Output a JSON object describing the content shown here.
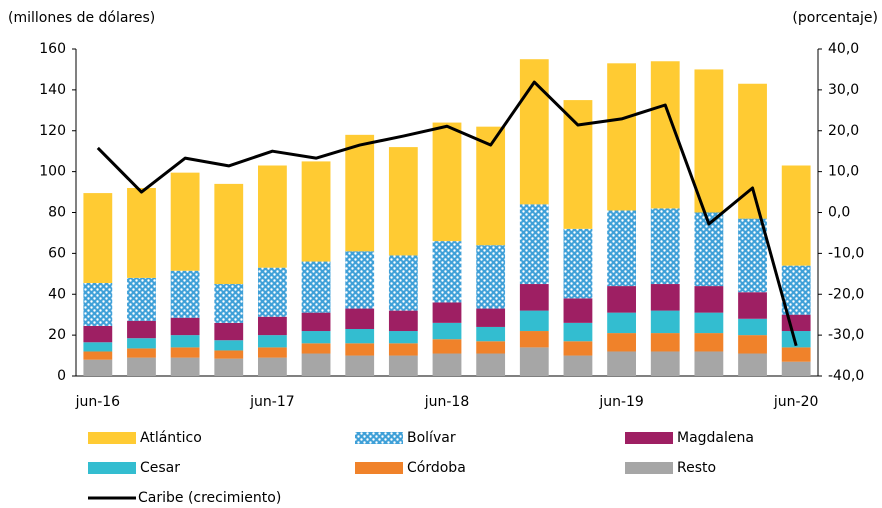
{
  "chart_data": {
    "type": "bar",
    "y_label": "(millones de dólares)",
    "y2_label": "(porcentaje)",
    "categories": [
      "jun-16",
      null,
      null,
      null,
      "jun-17",
      null,
      null,
      null,
      "jun-18",
      null,
      null,
      null,
      "jun-19",
      null,
      null,
      null,
      "jun-20"
    ],
    "ylim": [
      0,
      160
    ],
    "yticks": [
      0,
      20,
      40,
      60,
      80,
      100,
      120,
      140,
      160
    ],
    "y2lim": [
      -40,
      40
    ],
    "y2ticks": [
      {
        "value": -40,
        "label": "-40,0"
      },
      {
        "value": -30,
        "label": "-30,0"
      },
      {
        "value": -20,
        "label": "-20,0"
      },
      {
        "value": -10,
        "label": "-10,0"
      },
      {
        "value": 0,
        "label": "0,0"
      },
      {
        "value": 10,
        "label": "10,0"
      },
      {
        "value": 20,
        "label": "20,0"
      },
      {
        "value": 30,
        "label": "30,0"
      },
      {
        "value": 40,
        "label": "40,0"
      }
    ],
    "series": [
      {
        "name": "Resto",
        "color": "#a6a6a6",
        "values": [
          8,
          9,
          9,
          8.5,
          9,
          11,
          10,
          10,
          11,
          11,
          14,
          10,
          12,
          12,
          12,
          11,
          7
        ]
      },
      {
        "name": "Córdoba",
        "color": "#f0822a",
        "values": [
          4,
          4.5,
          5,
          4,
          5,
          5,
          6,
          6,
          7,
          6,
          8,
          7,
          9,
          9,
          9,
          9,
          7
        ]
      },
      {
        "name": "Cesar",
        "color": "#33bdd0",
        "values": [
          4.5,
          5,
          6,
          5,
          6,
          6,
          7,
          6,
          8,
          7,
          10,
          9,
          10,
          11,
          10,
          8,
          8
        ]
      },
      {
        "name": "Magdalena",
        "color": "#9e1f63",
        "values": [
          8,
          8.5,
          8.5,
          8.5,
          9,
          9,
          10,
          10,
          10,
          9,
          13,
          12,
          13,
          13,
          13,
          13,
          8
        ]
      },
      {
        "name": "Bolívar",
        "color": "#3fa0d8",
        "values": [
          21,
          21,
          23,
          19,
          24,
          25,
          28,
          27,
          30,
          31,
          39,
          34,
          37,
          37,
          36,
          36,
          24
        ]
      },
      {
        "name": "Atlántico",
        "color": "#ffcb33",
        "values": [
          44,
          44,
          48,
          49,
          50,
          49,
          57,
          53,
          58,
          58,
          71,
          63,
          72,
          72,
          70,
          66,
          49
        ]
      },
      {
        "name": "Caribe (crecimiento)",
        "color": "#000000",
        "type": "line",
        "axis": "y2",
        "values": [
          15.8,
          5.0,
          13.3,
          11.4,
          15.0,
          13.3,
          16.5,
          18.7,
          21.1,
          16.5,
          31.9,
          21.4,
          22.9,
          26.3,
          -2.8,
          6.0,
          -32.6
        ]
      }
    ]
  }
}
